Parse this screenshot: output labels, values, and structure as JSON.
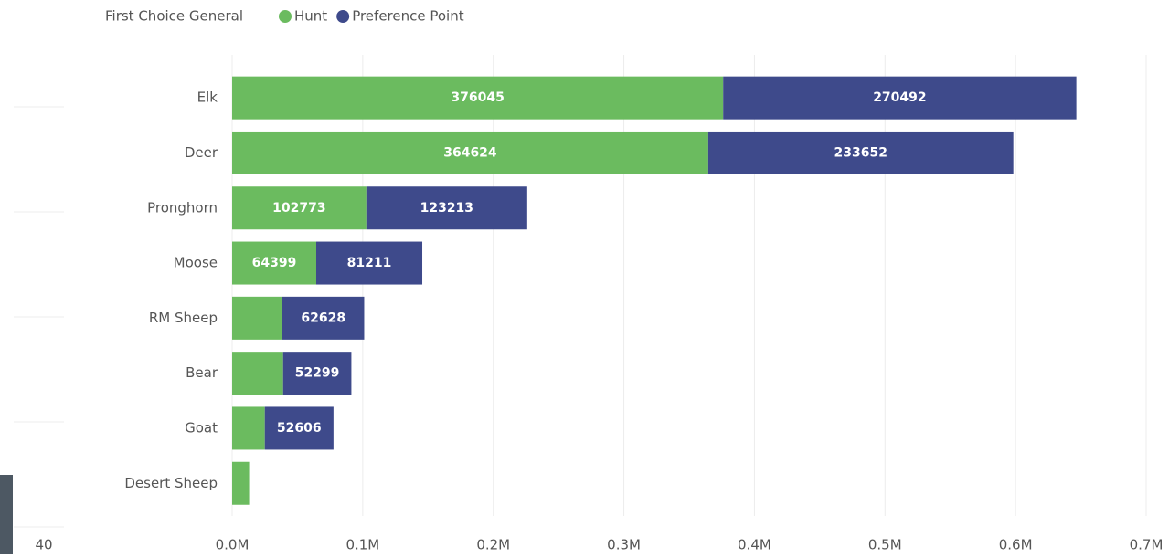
{
  "chart_data": {
    "type": "bar",
    "orientation": "horizontal",
    "stacked": true,
    "legend_title": "First Choice General",
    "categories": [
      "Elk",
      "Deer",
      "Pronghorn",
      "Moose",
      "RM Sheep",
      "Bear",
      "Goat",
      "Desert Sheep"
    ],
    "series": [
      {
        "name": "Hunt",
        "color": "#6bbb5f",
        "values": [
          376045,
          364624,
          102773,
          64399,
          38500,
          39000,
          25000,
          13000
        ]
      },
      {
        "name": "Preference Point",
        "color": "#3e4a8b",
        "values": [
          270492,
          233652,
          123213,
          81211,
          62628,
          52299,
          52606,
          null
        ]
      }
    ],
    "xlim": [
      0,
      700000
    ],
    "xticks": [
      {
        "value": 0,
        "label": "0.0M"
      },
      {
        "value": 100000,
        "label": "0.1M"
      },
      {
        "value": 200000,
        "label": "0.2M"
      },
      {
        "value": 300000,
        "label": "0.3M"
      },
      {
        "value": 400000,
        "label": "0.4M"
      },
      {
        "value": 500000,
        "label": "0.5M"
      },
      {
        "value": 600000,
        "label": "0.6M"
      },
      {
        "value": 700000,
        "label": "0.7M"
      }
    ],
    "grid": true
  },
  "side_panel": {
    "tick_label": "40"
  }
}
